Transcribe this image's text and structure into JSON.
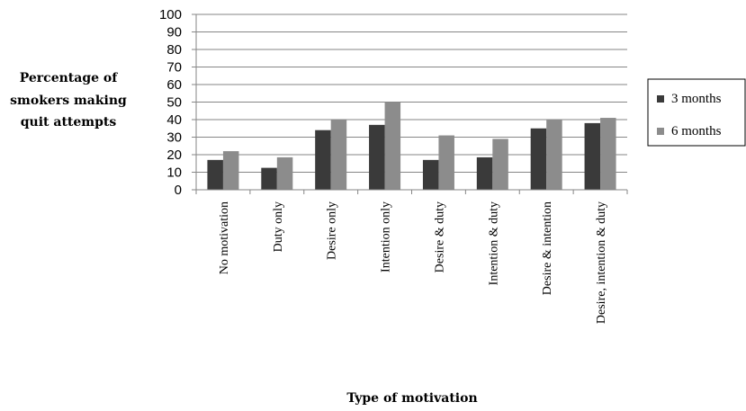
{
  "chart_data": {
    "type": "bar",
    "ylabel_lines": [
      "Percentage of",
      "smokers making",
      "quit attempts"
    ],
    "xlabel": "Type of motivation",
    "ylim": [
      0,
      100
    ],
    "yticks": [
      0,
      10,
      20,
      30,
      40,
      50,
      60,
      70,
      80,
      90,
      100
    ],
    "grid": true,
    "legend_position": "right",
    "categories": [
      "No motivation",
      "Duty only",
      "Desire only",
      "Intention only",
      "Desire & duty",
      "Intention & duty",
      "Desire & intention",
      "Desire, intention & duty"
    ],
    "series": [
      {
        "name": "3 months",
        "color": "#3a3a3a",
        "values": [
          17,
          12.5,
          34,
          37,
          17,
          18.5,
          35,
          38
        ]
      },
      {
        "name": "6 months",
        "color": "#8c8c8c",
        "values": [
          22,
          18.5,
          40,
          50,
          31,
          29,
          40,
          41
        ]
      }
    ]
  }
}
